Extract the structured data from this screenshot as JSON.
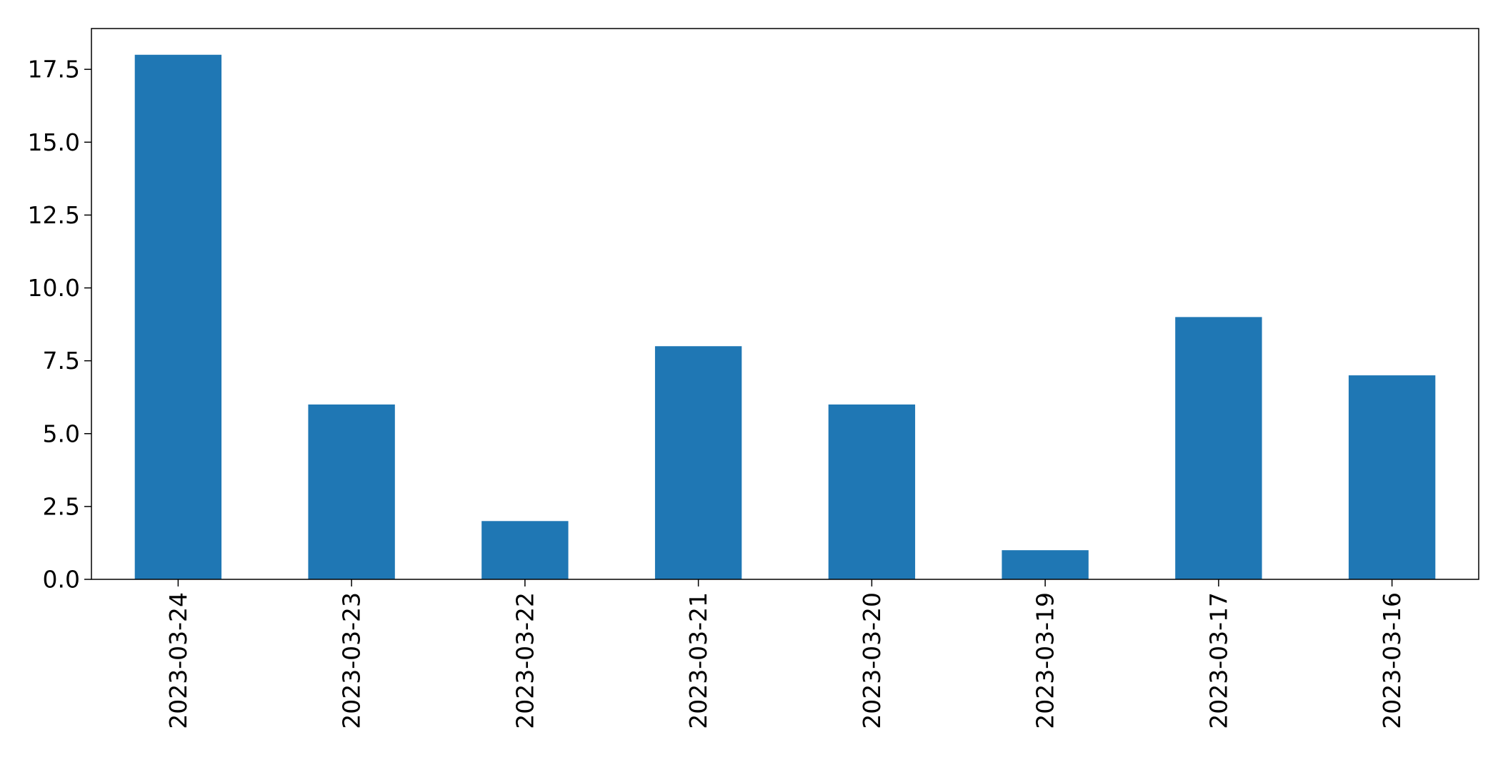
{
  "chart_data": {
    "type": "bar",
    "title": "",
    "xlabel": "",
    "ylabel": "",
    "categories": [
      "2023-03-24",
      "2023-03-23",
      "2023-03-22",
      "2023-03-21",
      "2023-03-20",
      "2023-03-19",
      "2023-03-17",
      "2023-03-16"
    ],
    "values": [
      18,
      6,
      2,
      8,
      6,
      1,
      9,
      7
    ],
    "ylim": [
      0,
      18.9
    ],
    "yticks": [
      "0.0",
      "2.5",
      "5.0",
      "7.5",
      "10.0",
      "12.5",
      "15.0",
      "17.5"
    ],
    "bar_color": "#1f77b4",
    "grid": false,
    "legend": "none"
  }
}
